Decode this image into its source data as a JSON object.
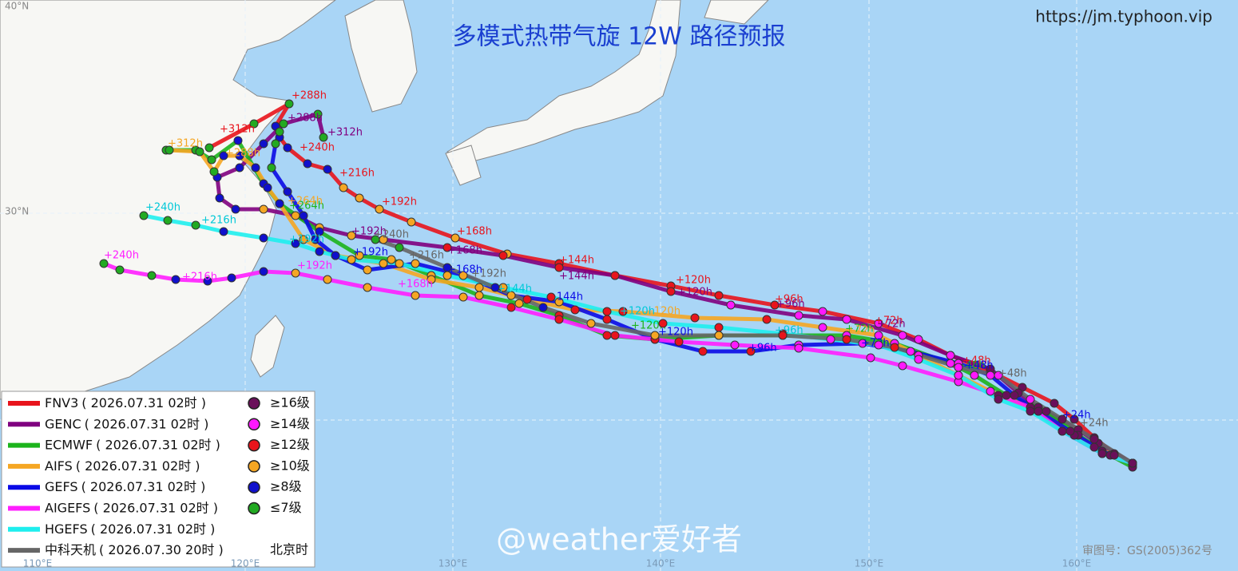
{
  "title": "多模式热带气旋 12W 路径预报",
  "source_url": "https://jm.typhoon.vip",
  "models": [
    {
      "name": "FNV3",
      "time": "( 2026.07.31 02时 )",
      "color": "#e8141c",
      "hour_labels": [
        "+288h",
        "+312h",
        "+240h",
        "+216h",
        "+192h",
        "+168h",
        "+144h",
        "+120h",
        "+96h",
        "+72h",
        "+48h"
      ]
    },
    {
      "name": "GENC",
      "time": "( 2026.07.31 02时 )",
      "color": "#800080",
      "hour_labels": [
        "+312h",
        "+288h",
        "+192h",
        "+168h",
        "+144h",
        "+120h",
        "+96h",
        "+72h"
      ]
    },
    {
      "name": "ECMWF",
      "time": "( 2026.07.31 02时 )",
      "color": "#1cb41c",
      "hour_labels": [
        "+264h",
        "+120h",
        "+72h",
        "+48h"
      ]
    },
    {
      "name": "AIFS",
      "time": "( 2026.07.31 02时 )",
      "color": "#f5a623",
      "hour_labels": [
        "+312h",
        "+288h",
        "+264h",
        "+120h",
        "+72h"
      ]
    },
    {
      "name": "GEFS",
      "time": "( 2026.07.31 02时 )",
      "color": "#0a0ae6",
      "hour_labels": [
        "+192h",
        "+168h",
        "+144h",
        "+120h",
        "+96h",
        "+72h",
        "+48h",
        "+24h"
      ]
    },
    {
      "name": "AIGEFS",
      "time": "( 2026.07.31 02时 )",
      "color": "#ff1eff",
      "hour_labels": [
        "+240h",
        "+216h",
        "+192h",
        "+168h"
      ]
    },
    {
      "name": "HGEFS",
      "time": "( 2026.07.31 02时 )",
      "color": "#1eeeee",
      "hour_labels": [
        "+240h",
        "+216h",
        "+192h",
        "+144h",
        "+120h",
        "+96h"
      ]
    },
    {
      "name": "中科天机",
      "time": "( 2026.07.30 20时 )",
      "color": "#666666",
      "hour_labels": [
        "+240h",
        "+216h",
        "+192h",
        "+48h",
        "+24h"
      ]
    }
  ],
  "intensity_legend": [
    {
      "label": "≥16级",
      "color": "#6a0f5a"
    },
    {
      "label": "≥14级",
      "color": "#ff18ff"
    },
    {
      "label": "≥12级",
      "color": "#e8141c"
    },
    {
      "label": "≥10级",
      "color": "#f5a623"
    },
    {
      "label": "≥8级",
      "color": "#1010cc"
    },
    {
      "label": "≤7级",
      "color": "#22aa22"
    }
  ],
  "timezone": "北京时",
  "lon_labels": [
    "110°E",
    "120°E",
    "130°E",
    "140°E",
    "150°E",
    "160°E"
  ],
  "lat_labels": [
    "40°N",
    "30°N"
  ],
  "watermark": "@weather爱好者",
  "approval": "审图号：GS(2005)362号"
}
